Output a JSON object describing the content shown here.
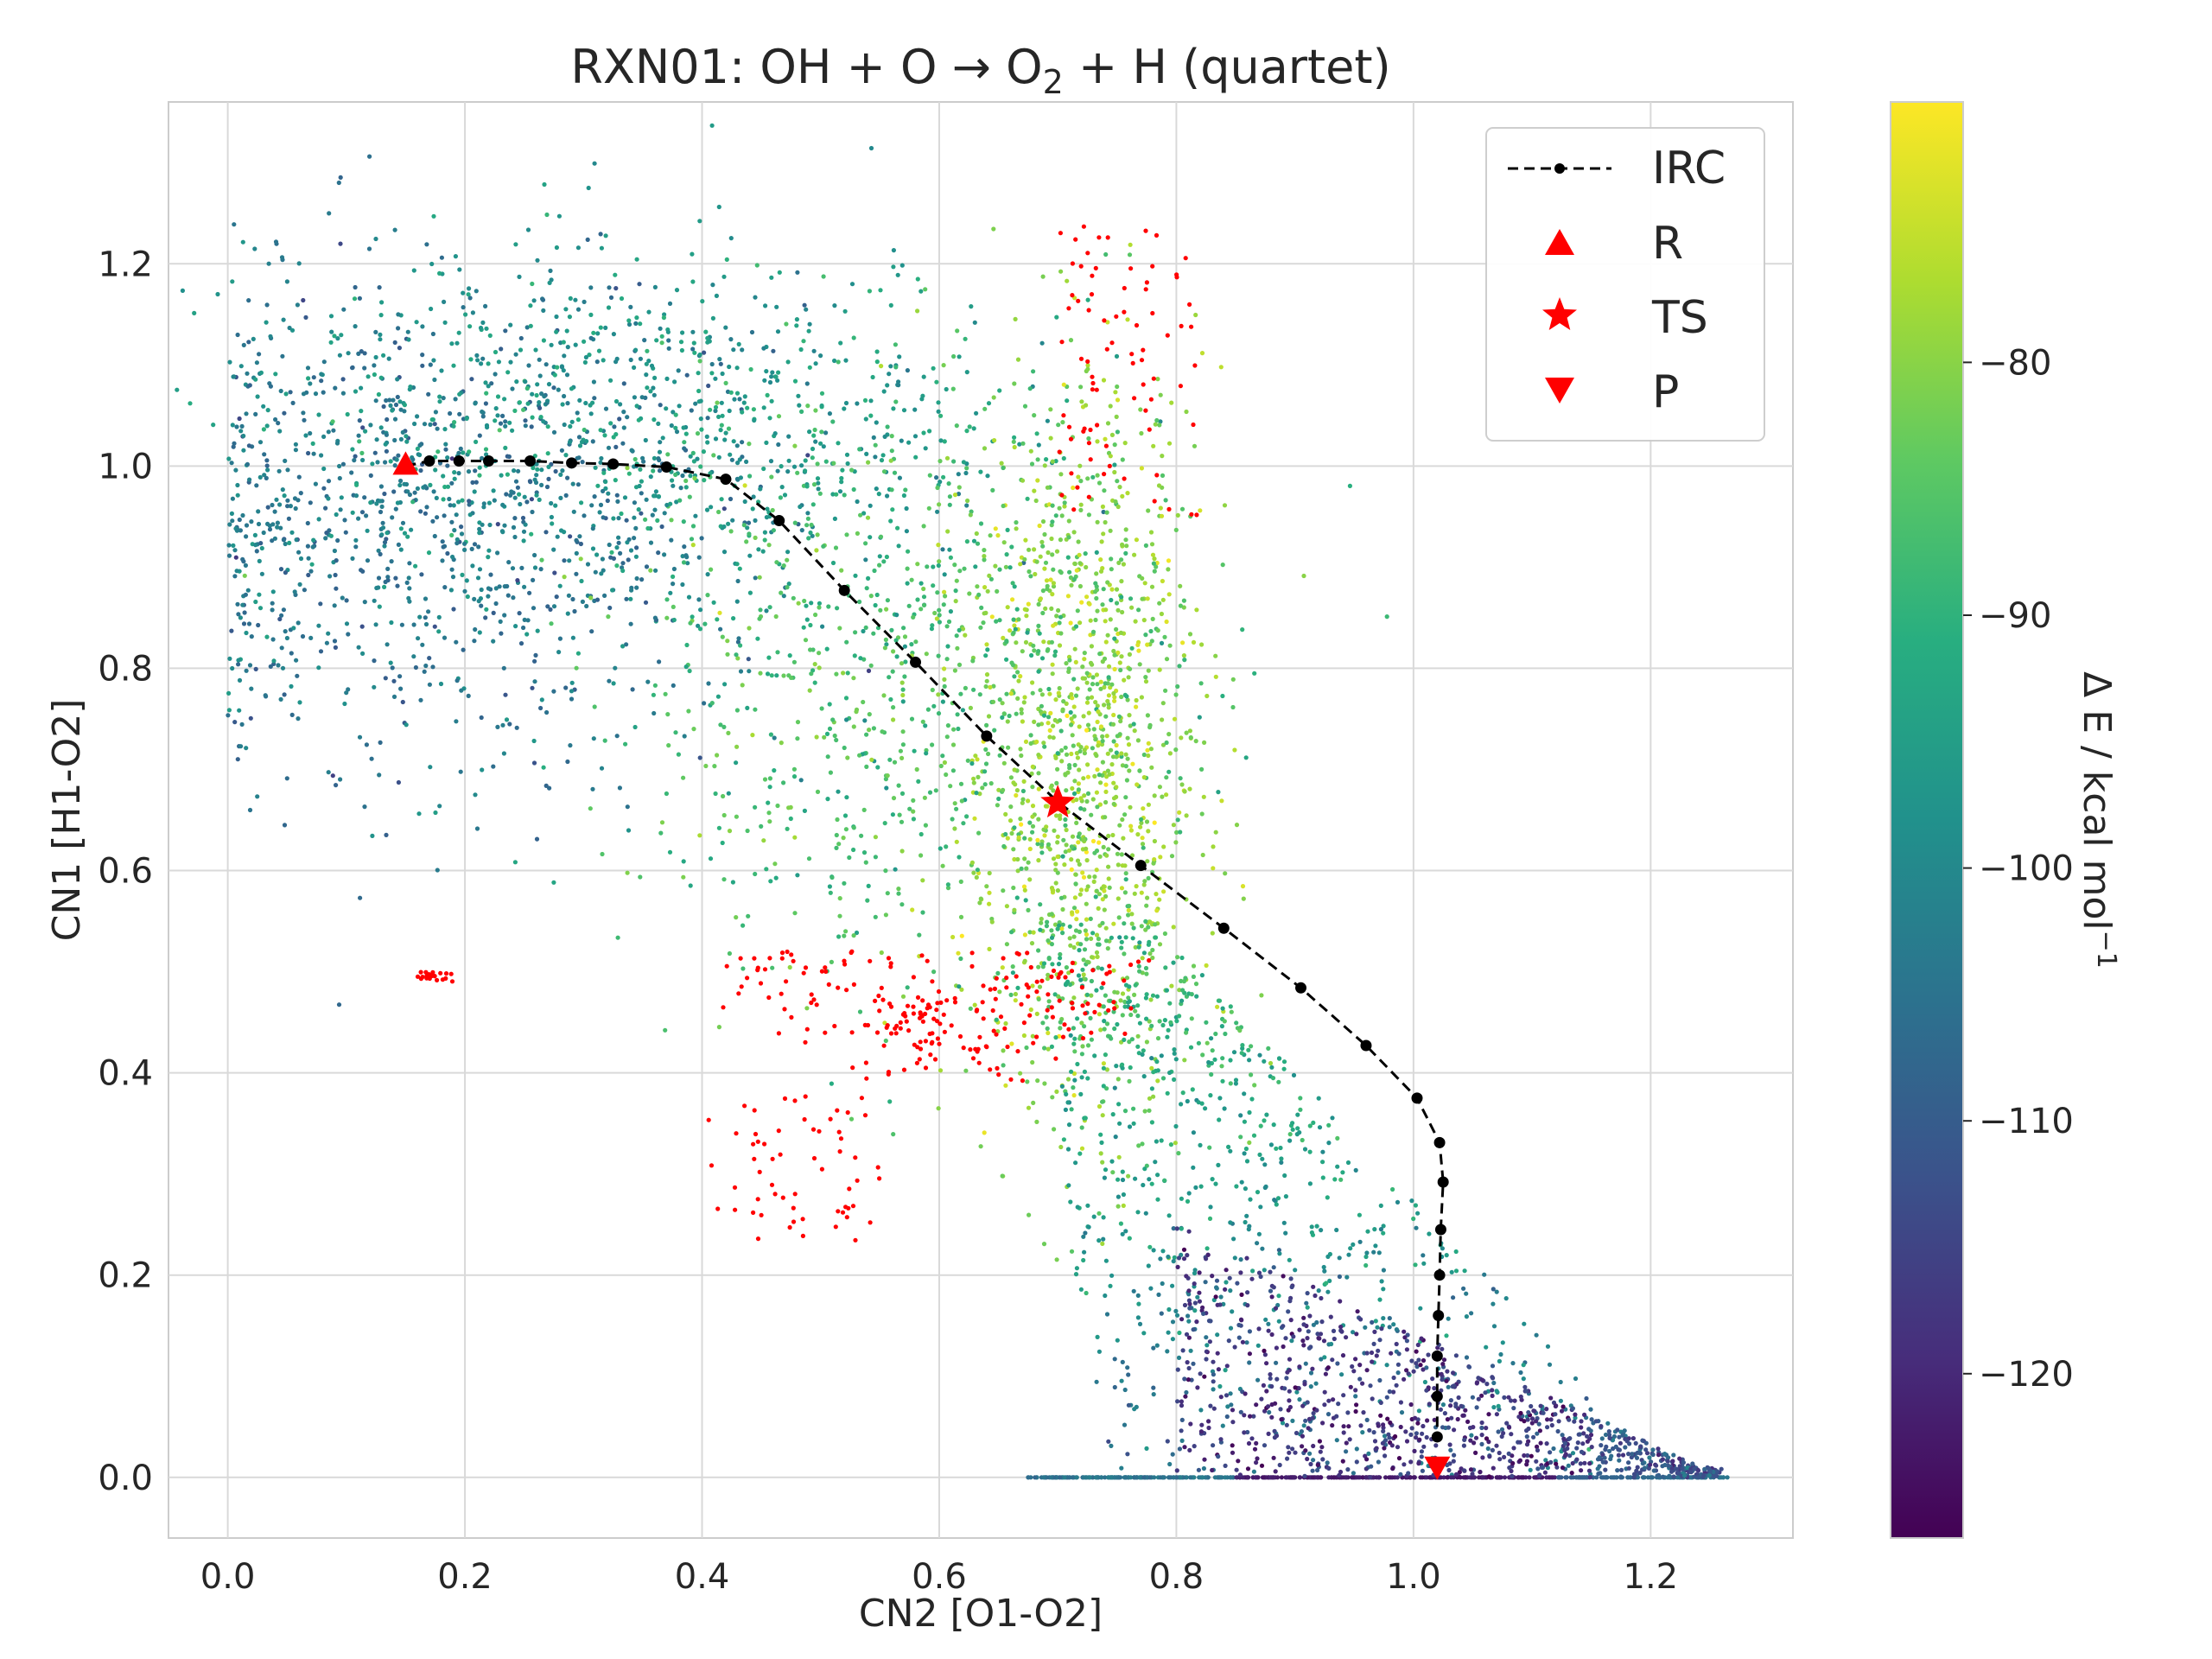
{
  "chart_data": {
    "type": "scatter",
    "title_main": "RXN01: OH + O  →  O",
    "title_sub": "2",
    "title_tail": " + H (quartet)",
    "xlabel": "CN2 [O1-O2]",
    "ylabel": "CN1 [H1-O2]",
    "xlim": [
      -0.05,
      1.32
    ],
    "ylim": [
      -0.06,
      1.36
    ],
    "xticks": [
      0.0,
      0.2,
      0.4,
      0.6,
      0.8,
      1.0,
      1.2
    ],
    "xtick_labels": [
      "0.0",
      "0.2",
      "0.4",
      "0.6",
      "0.8",
      "1.0",
      "1.2"
    ],
    "yticks": [
      0.0,
      0.2,
      0.4,
      0.6,
      0.8,
      1.0,
      1.2
    ],
    "ytick_labels": [
      "0.0",
      "0.2",
      "0.4",
      "0.6",
      "0.8",
      "1.0",
      "1.2"
    ],
    "grid": true,
    "legend_placement": "top-right",
    "legend": [
      {
        "label": "IRC",
        "marker": "line-dot"
      },
      {
        "label": "R",
        "marker": "triangle-up"
      },
      {
        "label": "TS",
        "marker": "star"
      },
      {
        "label": "P",
        "marker": "triangle-down"
      }
    ],
    "colorbar": {
      "label": "Δ E / kcal mol",
      "label_sup": "−1",
      "colormap": "viridis",
      "range": [
        -126.5,
        -69.7
      ],
      "ticks": [
        -80,
        -90,
        -100,
        -110,
        -120
      ],
      "tick_labels": [
        "−80",
        "−90",
        "−100",
        "−110",
        "−120"
      ]
    },
    "out_of_range_color": "#ff0000",
    "irc": {
      "name": "IRC",
      "x": [
        0.15,
        0.17,
        0.195,
        0.22,
        0.255,
        0.29,
        0.325,
        0.37,
        0.42,
        0.465,
        0.52,
        0.58,
        0.64,
        0.7,
        0.77,
        0.84,
        0.905,
        0.96,
        1.003,
        1.022,
        1.025,
        1.023,
        1.022,
        1.021,
        1.02,
        1.02,
        1.02
      ],
      "y": [
        1.0,
        1.005,
        1.005,
        1.005,
        1.005,
        1.003,
        1.002,
        0.999,
        0.987,
        0.946,
        0.877,
        0.806,
        0.733,
        0.668,
        0.605,
        0.543,
        0.484,
        0.427,
        0.375,
        0.331,
        0.292,
        0.245,
        0.2,
        0.16,
        0.12,
        0.08,
        0.04
      ],
      "color": "#000000"
    },
    "points": {
      "R": {
        "x": 0.15,
        "y": 1.0,
        "color": "#ff0000"
      },
      "TS": {
        "x": 0.7,
        "y": 0.667,
        "color": "#ff0000"
      },
      "P": {
        "x": 1.02,
        "y": 0.012,
        "color": "#ff0000"
      }
    },
    "scatter_regions": [
      {
        "name": "reactant-basin",
        "cx": 0.18,
        "cy": 0.95,
        "spread_x": 0.15,
        "spread_y": 0.12,
        "energy": -104
      },
      {
        "name": "upper-band",
        "cx": 0.35,
        "cy": 1.05,
        "spread_x": 0.16,
        "spread_y": 0.08,
        "energy": -96
      },
      {
        "name": "ts-region",
        "cx": 0.72,
        "cy": 0.72,
        "spread_x": 0.05,
        "spread_y": 0.18,
        "energy": -80
      },
      {
        "name": "mid-region",
        "cx": 0.55,
        "cy": 0.8,
        "spread_x": 0.12,
        "spread_y": 0.15,
        "energy": -87
      },
      {
        "name": "descent-region",
        "cx": 0.88,
        "cy": 0.3,
        "spread_x": 0.12,
        "spread_y": 0.17,
        "energy": -105
      },
      {
        "name": "product-band",
        "cx": 0.98,
        "cy": 0.0,
        "spread_x": 0.17,
        "spread_y": 0.0,
        "energy": -124
      },
      {
        "name": "product-cloud",
        "cx": 1.02,
        "cy": 0.06,
        "spread_x": 0.13,
        "spread_y": 0.05,
        "energy": -118
      }
    ]
  }
}
